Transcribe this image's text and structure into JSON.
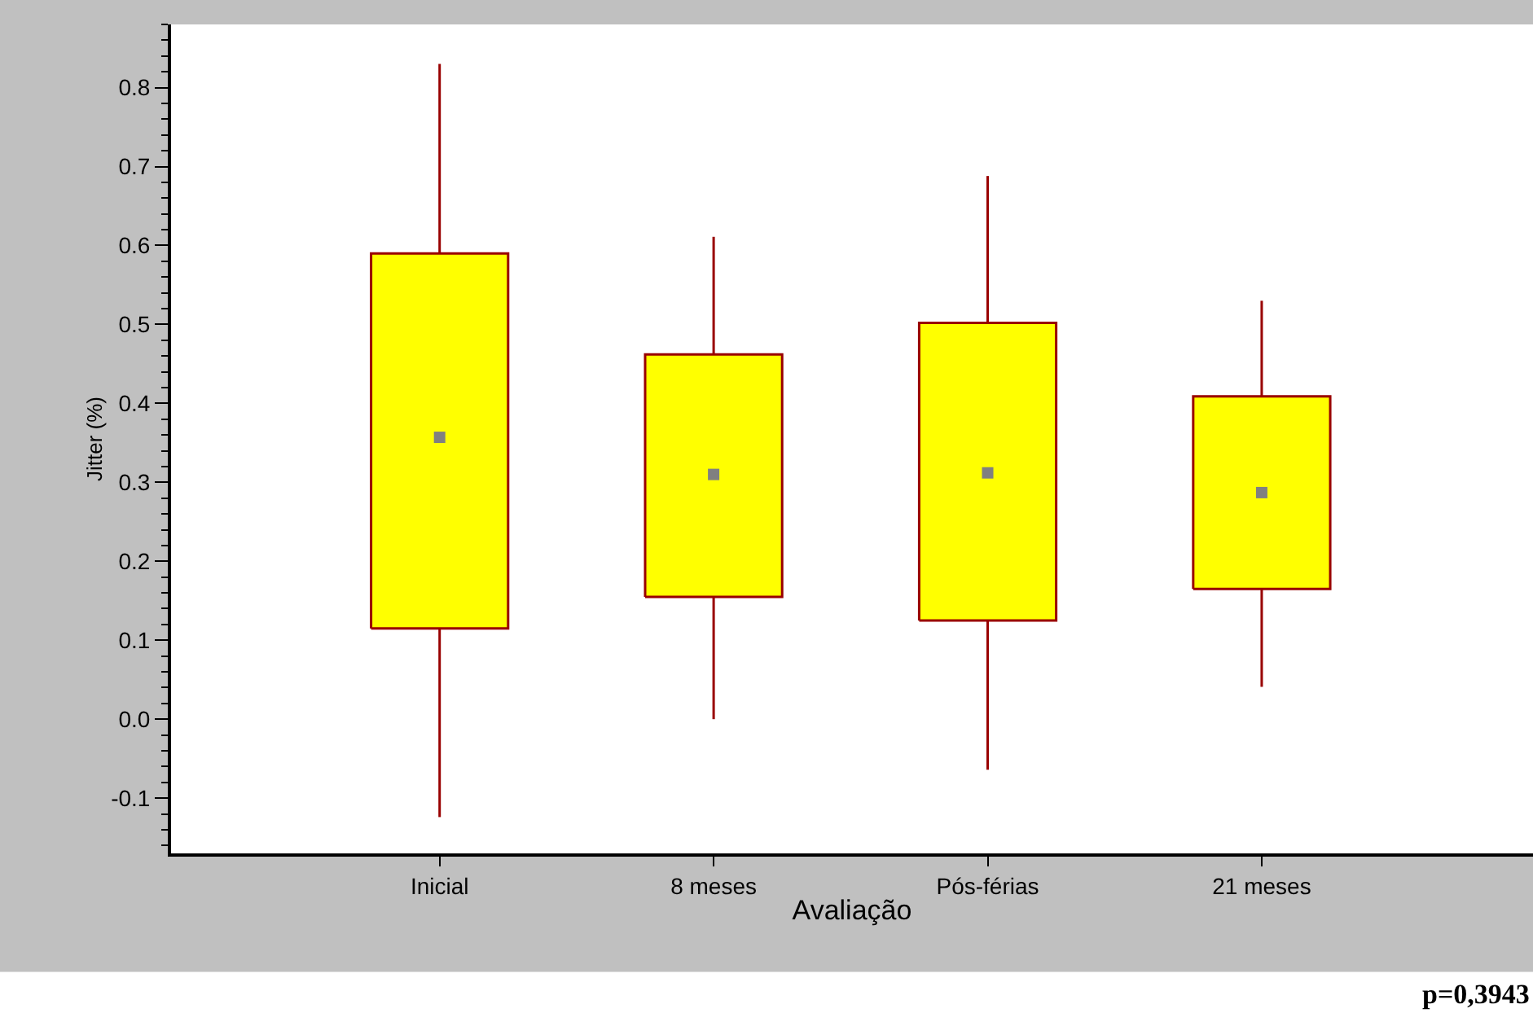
{
  "chart_data": {
    "type": "box",
    "xlabel": "Avaliação",
    "ylabel": "Jitter (%)",
    "categories": [
      "Inicial",
      "8 meses",
      "Pós-férias",
      "21 meses"
    ],
    "boxes": [
      {
        "low": -0.124,
        "q1": 0.115,
        "q3": 0.59,
        "high": 0.83,
        "mean": 0.357
      },
      {
        "low": 0.0,
        "q1": 0.155,
        "q3": 0.462,
        "high": 0.611,
        "mean": 0.31
      },
      {
        "low": -0.064,
        "q1": 0.125,
        "q3": 0.502,
        "high": 0.688,
        "mean": 0.312
      },
      {
        "low": 0.041,
        "q1": 0.165,
        "q3": 0.409,
        "high": 0.53,
        "mean": 0.287
      }
    ],
    "color": "#ffff00",
    "marker": "square",
    "ylim": [
      -0.17,
      0.88
    ],
    "yticks": [
      {
        "value": -0.1,
        "label": "-0.1"
      },
      {
        "value": 0,
        "label": "0.0"
      },
      0.1,
      0.2,
      0.3,
      0.4,
      0.5,
      0.6,
      0.7,
      0.8
    ],
    "annotations": [
      "p=0,3943"
    ]
  }
}
